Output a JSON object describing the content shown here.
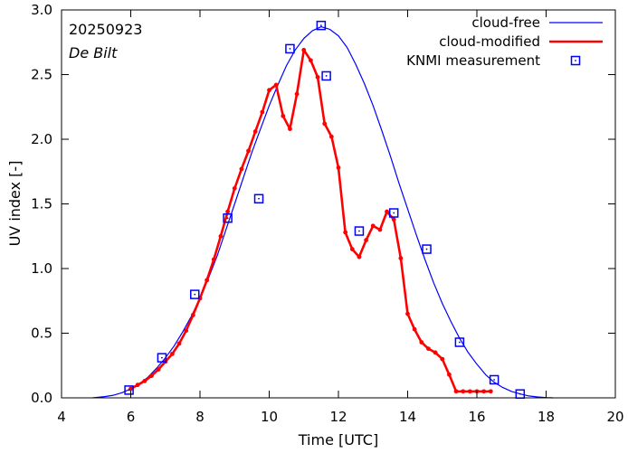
{
  "chart_data": {
    "type": "line",
    "title": "",
    "xlabel": "Time  [UTC]",
    "ylabel": "UV index  [-]",
    "xlim": [
      4,
      20
    ],
    "ylim": [
      0.0,
      3.0
    ],
    "xticks": [
      4,
      6,
      8,
      10,
      12,
      14,
      16,
      18,
      20
    ],
    "yticks": [
      0.0,
      0.5,
      1.0,
      1.5,
      2.0,
      2.5,
      3.0
    ],
    "xtick_labels": [
      "4",
      "6",
      "8",
      "10",
      "12",
      "14",
      "16",
      "18",
      "20"
    ],
    "ytick_labels": [
      "0.0",
      "0.5",
      "1.0",
      "1.5",
      "2.0",
      "2.5",
      "3.0"
    ],
    "grid": false,
    "legend_position": "top-right",
    "annotations": {
      "date": "20250923",
      "station": "De Bilt"
    },
    "series": [
      {
        "name": "cloud-free",
        "style": "line",
        "color": "#0000ff",
        "x": [
          4.9,
          5.25,
          5.5,
          5.75,
          6.0,
          6.25,
          6.5,
          6.75,
          7.0,
          7.25,
          7.5,
          7.75,
          8.0,
          8.25,
          8.5,
          8.75,
          9.0,
          9.25,
          9.5,
          9.75,
          10.0,
          10.25,
          10.5,
          10.75,
          11.0,
          11.25,
          11.5,
          11.75,
          12.0,
          12.25,
          12.5,
          12.75,
          13.0,
          13.25,
          13.5,
          13.75,
          14.0,
          14.25,
          14.5,
          14.75,
          15.0,
          15.25,
          15.5,
          15.75,
          16.0,
          16.25,
          16.5,
          16.75,
          17.0,
          17.25,
          17.5,
          17.75,
          18.0,
          18.2
        ],
        "values": [
          0.0,
          0.01,
          0.02,
          0.04,
          0.07,
          0.11,
          0.16,
          0.23,
          0.31,
          0.4,
          0.51,
          0.63,
          0.77,
          0.93,
          1.1,
          1.3,
          1.5,
          1.7,
          1.9,
          2.08,
          2.26,
          2.42,
          2.57,
          2.69,
          2.78,
          2.84,
          2.87,
          2.85,
          2.8,
          2.71,
          2.58,
          2.43,
          2.26,
          2.07,
          1.87,
          1.66,
          1.46,
          1.26,
          1.07,
          0.89,
          0.73,
          0.59,
          0.46,
          0.35,
          0.26,
          0.18,
          0.12,
          0.08,
          0.05,
          0.03,
          0.015,
          0.007,
          0.002,
          0.0
        ]
      },
      {
        "name": "cloud-modified",
        "style": "line-markers",
        "color": "#ff0000",
        "x": [
          6.0,
          6.2,
          6.4,
          6.6,
          6.8,
          7.0,
          7.2,
          7.4,
          7.6,
          7.8,
          8.0,
          8.2,
          8.4,
          8.6,
          8.8,
          9.0,
          9.2,
          9.4,
          9.6,
          9.8,
          10.0,
          10.2,
          10.4,
          10.6,
          10.8,
          11.0,
          11.2,
          11.4,
          11.6,
          11.8,
          12.0,
          12.2,
          12.4,
          12.6,
          12.8,
          13.0,
          13.2,
          13.4,
          13.6,
          13.8,
          14.0,
          14.2,
          14.4,
          14.6,
          14.8,
          15.0,
          15.2,
          15.4,
          15.6,
          15.8,
          16.0,
          16.2,
          16.4
        ],
        "values": [
          0.07,
          0.1,
          0.13,
          0.17,
          0.22,
          0.28,
          0.34,
          0.42,
          0.52,
          0.64,
          0.77,
          0.91,
          1.07,
          1.25,
          1.44,
          1.62,
          1.77,
          1.91,
          2.06,
          2.21,
          2.38,
          2.42,
          2.18,
          2.08,
          2.35,
          2.69,
          2.61,
          2.48,
          2.12,
          2.02,
          1.78,
          1.28,
          1.15,
          1.09,
          1.22,
          1.33,
          1.3,
          1.44,
          1.38,
          1.08,
          0.65,
          0.53,
          0.43,
          0.38,
          0.35,
          0.3,
          0.18,
          0.05,
          0.05,
          0.05,
          0.05,
          0.05,
          0.05
        ]
      },
      {
        "name": "KNMI measurement",
        "style": "markers",
        "color": "#0000ff",
        "x": [
          5.95,
          6.9,
          7.85,
          8.8,
          9.7,
          10.6,
          11.5,
          11.65,
          12.6,
          13.6,
          14.55,
          15.5,
          16.5,
          17.25
        ],
        "values": [
          0.06,
          0.31,
          0.8,
          1.39,
          1.54,
          2.7,
          2.88,
          2.49,
          1.29,
          1.43,
          1.15,
          0.43,
          0.14,
          0.03
        ]
      }
    ]
  }
}
